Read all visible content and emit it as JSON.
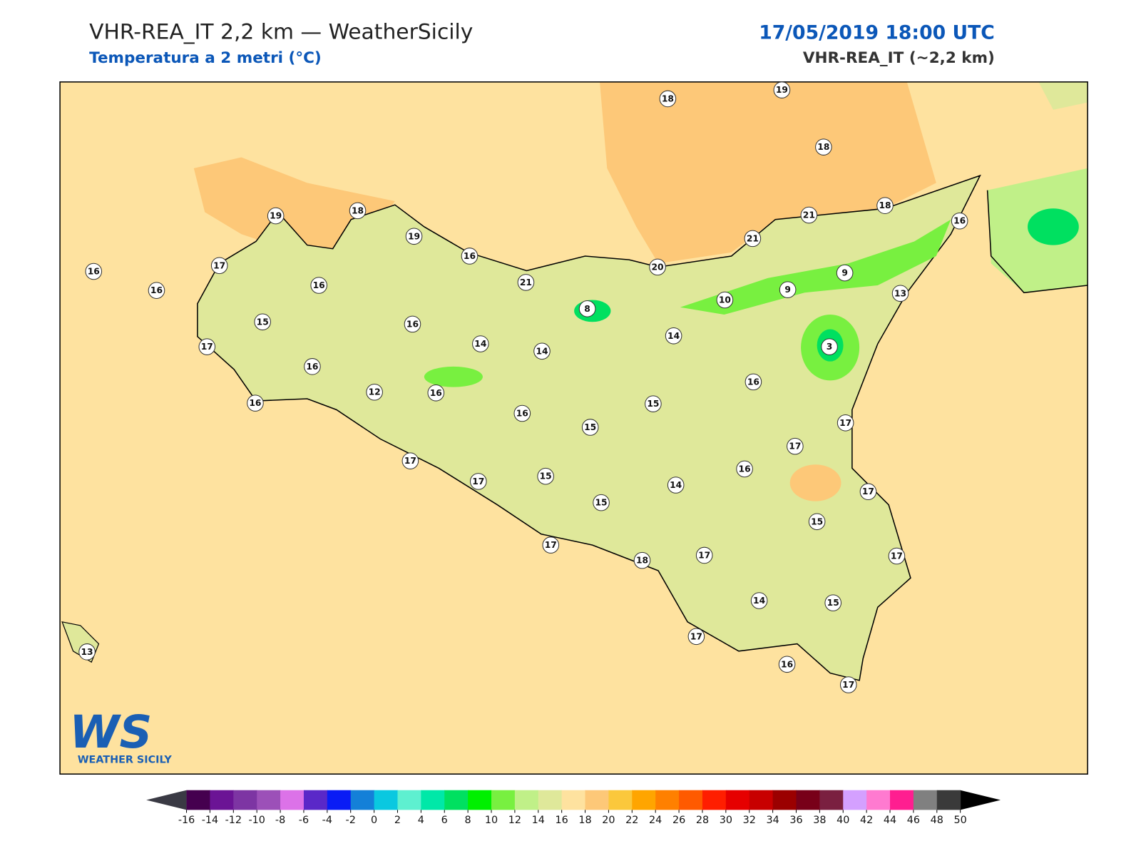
{
  "header": {
    "title": "VHR-REA_IT 2,2 km — WeatherSicily",
    "subtitle": "Temperatura a 2 metri (°C)",
    "datetime": "17/05/2019 18:00 UTC",
    "model": "VHR-REA_IT (~2,2 km)"
  },
  "stations": [
    18,
    19,
    18,
    19,
    18,
    19,
    16,
    21,
    20,
    21,
    21,
    18,
    16,
    17,
    16,
    16,
    16,
    15,
    17,
    16,
    14,
    14,
    8,
    10,
    9,
    9,
    13,
    14,
    3,
    16,
    12,
    16,
    16,
    16,
    15,
    15,
    16,
    17,
    17,
    16,
    17,
    17,
    15,
    14,
    15,
    17,
    15,
    17,
    18,
    17,
    17,
    14,
    15,
    17,
    16,
    17,
    13
  ],
  "logo": {
    "mark": "WS",
    "name": "WEATHER SICILY"
  },
  "colorbar": {
    "ticks": [
      -16,
      -14,
      -12,
      -10,
      -8,
      -6,
      -4,
      -2,
      0,
      2,
      4,
      6,
      8,
      10,
      12,
      14,
      16,
      18,
      20,
      22,
      24,
      26,
      28,
      30,
      32,
      34,
      36,
      38,
      40,
      42,
      44,
      46,
      48,
      50
    ],
    "colors": [
      "#45004f",
      "#6b1495",
      "#7d35a3",
      "#9c50b8",
      "#dc72e8",
      "#5a28c8",
      "#0a1cf5",
      "#1480d8",
      "#0ac8e0",
      "#5ef0d0",
      "#00e8a8",
      "#00e060",
      "#00f000",
      "#78f040",
      "#c0f088",
      "#dfe89a",
      "#fee29f",
      "#fdc878",
      "#fbc83c",
      "#ffa500",
      "#ff8000",
      "#ff5a00",
      "#ff1e00",
      "#e60000",
      "#c80000",
      "#9b0000",
      "#780019",
      "#7a2040",
      "#d4a0ff",
      "#ff7ad0",
      "#ff1e90",
      "#808080",
      "#3a3a3a"
    ],
    "under_color": "#3a3a44",
    "over_color": "#000000"
  }
}
